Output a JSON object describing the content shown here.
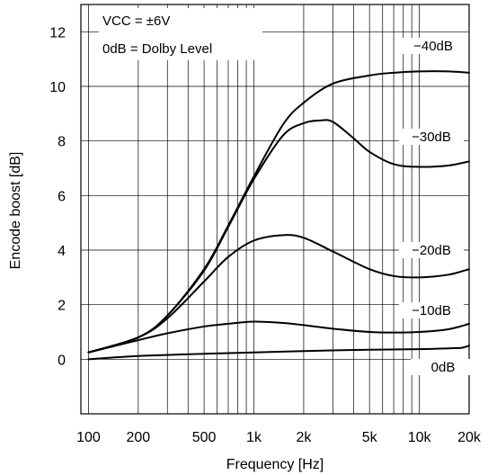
{
  "chart_data": {
    "type": "line",
    "title": "",
    "xlabel": "Frequency [Hz]",
    "ylabel": "Encode boost [dB]",
    "xscale": "log",
    "xlim": [
      90,
      20000
    ],
    "ylim": [
      -2,
      13
    ],
    "grid": true,
    "colors": {
      "line": "#000000",
      "grid": "#000000",
      "background": "#ffffff"
    },
    "x_ticks": [
      {
        "value": 100,
        "label": "100"
      },
      {
        "value": 200,
        "label": "200"
      },
      {
        "value": 500,
        "label": "500"
      },
      {
        "value": 1000,
        "label": "1k"
      },
      {
        "value": 2000,
        "label": "2k"
      },
      {
        "value": 5000,
        "label": "5k"
      },
      {
        "value": 10000,
        "label": "10k"
      },
      {
        "value": 20000,
        "label": "20k"
      }
    ],
    "y_ticks": [
      {
        "value": 0,
        "label": "0"
      },
      {
        "value": 2,
        "label": "2"
      },
      {
        "value": 4,
        "label": "4"
      },
      {
        "value": 6,
        "label": "6"
      },
      {
        "value": 8,
        "label": "8"
      },
      {
        "value": 10,
        "label": "10"
      },
      {
        "value": 12,
        "label": "12"
      }
    ],
    "annotations": [
      "VCC = ±6V",
      "0dB = Dolby Level"
    ],
    "series": [
      {
        "name": "−40dB",
        "x": [
          100,
          200,
          300,
          500,
          700,
          1000,
          1500,
          2000,
          3000,
          5000,
          7000,
          10000,
          15000,
          20000
        ],
        "y": [
          0.25,
          0.8,
          1.6,
          3.3,
          4.9,
          6.7,
          8.6,
          9.4,
          10.1,
          10.4,
          10.5,
          10.55,
          10.55,
          10.5
        ]
      },
      {
        "name": "−30dB",
        "x": [
          100,
          200,
          300,
          500,
          700,
          1000,
          1500,
          2000,
          2500,
          3000,
          4000,
          5000,
          7000,
          10000,
          15000,
          20000
        ],
        "y": [
          0.25,
          0.8,
          1.6,
          3.25,
          4.85,
          6.6,
          8.2,
          8.65,
          8.75,
          8.7,
          8.1,
          7.6,
          7.15,
          7.05,
          7.1,
          7.25
        ]
      },
      {
        "name": "−20dB",
        "x": [
          100,
          200,
          300,
          500,
          700,
          1000,
          1500,
          2000,
          3000,
          5000,
          7000,
          10000,
          15000,
          20000
        ],
        "y": [
          0.25,
          0.8,
          1.5,
          2.85,
          3.75,
          4.35,
          4.55,
          4.45,
          3.95,
          3.3,
          3.05,
          3.0,
          3.1,
          3.3
        ]
      },
      {
        "name": "−10dB",
        "x": [
          100,
          200,
          300,
          500,
          700,
          1000,
          1500,
          2000,
          3000,
          5000,
          7000,
          10000,
          15000,
          20000
        ],
        "y": [
          0.25,
          0.7,
          0.95,
          1.2,
          1.3,
          1.38,
          1.33,
          1.25,
          1.12,
          1.0,
          0.98,
          1.0,
          1.1,
          1.3
        ]
      },
      {
        "name": "0dB",
        "x": [
          100,
          200,
          500,
          1000,
          2000,
          5000,
          10000,
          15000,
          18000,
          20000
        ],
        "y": [
          0.0,
          0.12,
          0.2,
          0.25,
          0.3,
          0.35,
          0.37,
          0.4,
          0.42,
          0.5
        ]
      }
    ]
  }
}
